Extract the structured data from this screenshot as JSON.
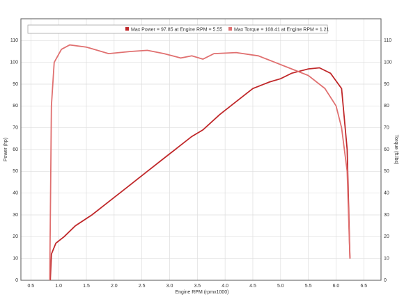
{
  "chart_data": {
    "type": "line",
    "legend": [
      "Max Power = 97.85 at Engine RPM = 5.55",
      "Max Torque = 108.41 at Engine RPM = 1.21"
    ],
    "xlabel": "Engine RPM (rpmx1000)",
    "ylabel": "Power (hp)",
    "y2label": "Torque (ft.lbs)",
    "xlim": [
      0.32,
      6.81
    ],
    "ylim": [
      0,
      120
    ],
    "y2lim": [
      0,
      120
    ],
    "xticks": [
      0.5,
      {
        "value": 1,
        "label": "1.0"
      },
      1.5,
      {
        "value": 2,
        "label": "2.0"
      },
      2.5,
      {
        "value": 3,
        "label": "3.0"
      },
      3.5,
      {
        "value": 4,
        "label": "4.0"
      },
      4.5,
      {
        "value": 5,
        "label": "5.0"
      },
      5.5,
      {
        "value": 6,
        "label": "6.0"
      },
      6.5
    ],
    "yticks": [
      0,
      10,
      20,
      30,
      40,
      50,
      60,
      70,
      80,
      90,
      100,
      110
    ],
    "y2ticks": [
      0,
      10,
      20,
      30,
      40,
      50,
      60,
      70,
      80,
      90,
      100,
      110
    ],
    "grid": true,
    "series": [
      {
        "name": "Power",
        "color": "#c0282a",
        "x": [
          0.85,
          0.87,
          0.95,
          1.1,
          1.3,
          1.6,
          1.9,
          2.2,
          2.6,
          2.9,
          3.1,
          3.4,
          3.6,
          3.9,
          4.2,
          4.5,
          4.8,
          5.0,
          5.2,
          5.5,
          5.7,
          5.9,
          6.1,
          6.2,
          6.25
        ],
        "values": [
          0,
          12,
          17,
          20,
          25,
          30,
          36,
          42,
          50,
          56,
          60,
          66,
          69,
          76,
          82,
          88,
          91,
          92.5,
          95,
          97,
          97.5,
          95,
          88,
          60,
          10
        ]
      },
      {
        "name": "Torque",
        "color": "#e07070",
        "axis": "y2",
        "x": [
          0.84,
          0.87,
          0.92,
          1.05,
          1.2,
          1.5,
          1.9,
          2.3,
          2.6,
          2.9,
          3.2,
          3.4,
          3.6,
          3.8,
          4.2,
          4.6,
          4.9,
          5.2,
          5.5,
          5.8,
          6.0,
          6.1,
          6.2,
          6.25
        ],
        "values": [
          0,
          80,
          100,
          106,
          108,
          107,
          104,
          105,
          105.5,
          104,
          102,
          103,
          101.5,
          104,
          104.5,
          103,
          100,
          97,
          94,
          88,
          80,
          70,
          50,
          10
        ]
      }
    ]
  }
}
